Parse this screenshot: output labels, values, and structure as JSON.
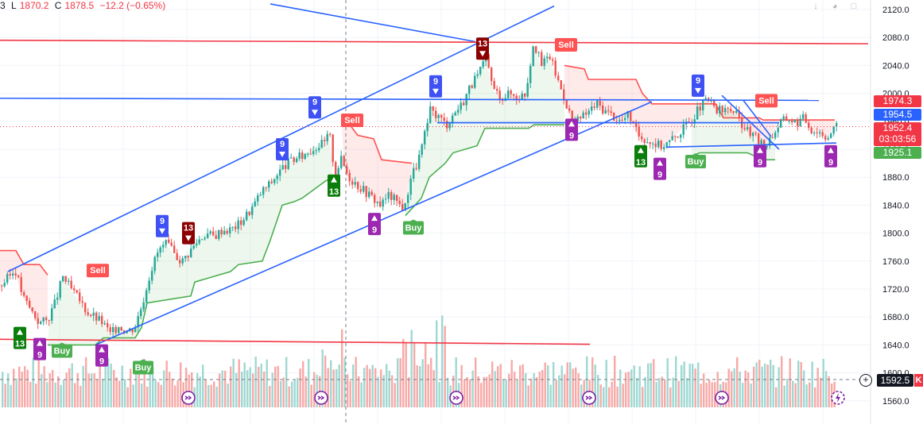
{
  "legend": {
    "open_tail": "3",
    "low_label": "L",
    "low": "1870.2",
    "close_label": "C",
    "close": "1878.5",
    "change": "−12.2 (−0.65%)"
  },
  "toolbar": {
    "down_icon": "arrow-down-icon",
    "eye_icon": "eye-icon",
    "more_icon": "more-icon"
  },
  "colors": {
    "up": "#26a69a",
    "down": "#ef5350",
    "trend_blue": "#2962ff",
    "resistance_red": "#f23645",
    "buy_green": "#4caf50",
    "sell_red": "#ff5252",
    "td_purple": "#9c27b0",
    "td_blue": "#3f51f5",
    "td_green": "#0a7d0a",
    "td_darkred": "#8b0000"
  },
  "price_labels": [
    {
      "key": "upper",
      "text": "1974.3",
      "color": "#f23645"
    },
    {
      "key": "mid",
      "text": "1954.5",
      "color": "#2962ff"
    },
    {
      "key": "last",
      "text": "1952.4",
      "color": "#f23645",
      "sub": "03:03:56"
    },
    {
      "key": "lower",
      "text": "1925.1",
      "color": "#4caf50"
    },
    {
      "key": "volume",
      "text": "1592.5",
      "color": "#131722"
    }
  ],
  "alert_badge": "K",
  "chart_data": {
    "type": "candlestick",
    "y_ticks": [
      "2120.0",
      "2080.0",
      "2040.0",
      "2000.0",
      "1960.0",
      "1920.0",
      "1880.0",
      "1840.0",
      "1800.0",
      "1760.0",
      "1720.0",
      "1680.0",
      "1640.0",
      "1600.0",
      "1560.0"
    ],
    "ylim": [
      1555,
      2125
    ],
    "price_path": [
      [
        0,
        1725
      ],
      [
        8,
        1735
      ],
      [
        18,
        1748
      ],
      [
        28,
        1708
      ],
      [
        38,
        1690
      ],
      [
        48,
        1672
      ],
      [
        58,
        1675
      ],
      [
        68,
        1700
      ],
      [
        78,
        1738
      ],
      [
        88,
        1720
      ],
      [
        98,
        1705
      ],
      [
        108,
        1688
      ],
      [
        118,
        1680
      ],
      [
        128,
        1672
      ],
      [
        138,
        1655
      ],
      [
        148,
        1668
      ],
      [
        158,
        1660
      ],
      [
        168,
        1665
      ],
      [
        178,
        1700
      ],
      [
        188,
        1745
      ],
      [
        198,
        1775
      ],
      [
        208,
        1785
      ],
      [
        218,
        1770
      ],
      [
        228,
        1760
      ],
      [
        238,
        1775
      ],
      [
        248,
        1790
      ],
      [
        258,
        1800
      ],
      [
        268,
        1795
      ],
      [
        278,
        1805
      ],
      [
        288,
        1805
      ],
      [
        298,
        1812
      ],
      [
        308,
        1825
      ],
      [
        318,
        1840
      ],
      [
        328,
        1860
      ],
      [
        338,
        1870
      ],
      [
        348,
        1885
      ],
      [
        358,
        1898
      ],
      [
        368,
        1905
      ],
      [
        378,
        1910
      ],
      [
        388,
        1918
      ],
      [
        398,
        1925
      ],
      [
        408,
        1930
      ],
      [
        413,
        1945
      ],
      [
        420,
        1885
      ],
      [
        428,
        1905
      ],
      [
        438,
        1880
      ],
      [
        448,
        1870
      ],
      [
        458,
        1860
      ],
      [
        468,
        1850
      ],
      [
        478,
        1840
      ],
      [
        488,
        1855
      ],
      [
        498,
        1845
      ],
      [
        508,
        1835
      ],
      [
        515,
        1880
      ],
      [
        522,
        1895
      ],
      [
        530,
        1925
      ],
      [
        540,
        1975
      ],
      [
        550,
        1968
      ],
      [
        560,
        1955
      ],
      [
        570,
        1972
      ],
      [
        580,
        1985
      ],
      [
        590,
        2010
      ],
      [
        600,
        2025
      ],
      [
        610,
        2050
      ],
      [
        620,
        2005
      ],
      [
        630,
        1995
      ],
      [
        640,
        2000
      ],
      [
        650,
        1995
      ],
      [
        660,
        2000
      ],
      [
        670,
        2075
      ],
      [
        680,
        2040
      ],
      [
        690,
        2055
      ],
      [
        700,
        2020
      ],
      [
        710,
        1990
      ],
      [
        720,
        1955
      ],
      [
        730,
        1965
      ],
      [
        740,
        1975
      ],
      [
        750,
        1985
      ],
      [
        760,
        1975
      ],
      [
        770,
        1968
      ],
      [
        780,
        1960
      ],
      [
        790,
        1970
      ],
      [
        800,
        1942
      ],
      [
        810,
        1935
      ],
      [
        820,
        1930
      ],
      [
        830,
        1925
      ],
      [
        840,
        1930
      ],
      [
        850,
        1940
      ],
      [
        860,
        1952
      ],
      [
        870,
        1965
      ],
      [
        880,
        1982
      ],
      [
        890,
        1990
      ],
      [
        900,
        1975
      ],
      [
        910,
        1975
      ],
      [
        920,
        1978
      ],
      [
        930,
        1960
      ],
      [
        940,
        1945
      ],
      [
        950,
        1935
      ],
      [
        960,
        1925
      ],
      [
        970,
        1940
      ],
      [
        980,
        1958
      ],
      [
        990,
        1965
      ],
      [
        1000,
        1958
      ],
      [
        1010,
        1965
      ],
      [
        1020,
        1948
      ],
      [
        1030,
        1945
      ],
      [
        1040,
        1938
      ],
      [
        1050,
        1952
      ]
    ],
    "supertrend": [
      {
        "dir": "down",
        "points": [
          [
            0,
            1775
          ],
          [
            20,
            1775
          ],
          [
            30,
            1755
          ],
          [
            50,
            1755
          ],
          [
            60,
            1740
          ]
        ]
      },
      {
        "dir": "up",
        "points": [
          [
            60,
            1640
          ],
          [
            120,
            1640
          ],
          [
            130,
            1650
          ],
          [
            170,
            1650
          ],
          [
            178,
            1665
          ],
          [
            185,
            1700
          ],
          [
            240,
            1710
          ],
          [
            245,
            1730
          ],
          [
            290,
            1745
          ],
          [
            300,
            1755
          ],
          [
            330,
            1760
          ],
          [
            340,
            1790
          ],
          [
            355,
            1840
          ],
          [
            370,
            1845
          ],
          [
            380,
            1850
          ],
          [
            410,
            1875
          ],
          [
            418,
            1878
          ]
        ]
      },
      {
        "dir": "down",
        "points": [
          [
            430,
            1955
          ],
          [
            440,
            1955
          ],
          [
            450,
            1940
          ],
          [
            470,
            1935
          ],
          [
            480,
            1905
          ],
          [
            518,
            1900
          ]
        ]
      },
      {
        "dir": "up",
        "points": [
          [
            510,
            1825
          ],
          [
            530,
            1850
          ],
          [
            540,
            1880
          ],
          [
            560,
            1900
          ],
          [
            570,
            1915
          ],
          [
            600,
            1925
          ],
          [
            610,
            1950
          ],
          [
            665,
            1950
          ],
          [
            672,
            1955
          ],
          [
            710,
            1955
          ]
        ]
      },
      {
        "dir": "down",
        "points": [
          [
            710,
            2040
          ],
          [
            735,
            2035
          ],
          [
            740,
            2020
          ],
          [
            800,
            2020
          ],
          [
            808,
            2000
          ],
          [
            820,
            1985
          ],
          [
            900,
            1985
          ],
          [
            910,
            1965
          ],
          [
            955,
            1965
          ],
          [
            960,
            1962
          ],
          [
            1050,
            1962
          ]
        ]
      },
      {
        "dir": "up",
        "points": [
          [
            870,
            1910
          ],
          [
            880,
            1915
          ],
          [
            940,
            1915
          ],
          [
            960,
            1905
          ],
          [
            975,
            1905
          ]
        ]
      }
    ],
    "trendlines": [
      {
        "color": "blue",
        "from": [
          10,
          1745
        ],
        "to": [
          697,
          2125
        ]
      },
      {
        "color": "blue",
        "from": [
          120,
          1640
        ],
        "to": [
          820,
          1988
        ]
      },
      {
        "color": "blue",
        "from": [
          340,
          2128
        ],
        "to": [
          598,
          2074
        ]
      },
      {
        "color": "blue",
        "from": [
          0,
          1993
        ],
        "to": [
          1030,
          1990
        ]
      },
      {
        "color": "blue",
        "from": [
          550,
          1958
        ],
        "to": [
          980,
          1958
        ]
      },
      {
        "color": "blue",
        "from": [
          838,
          1923
        ],
        "to": [
          1052,
          1929
        ]
      },
      {
        "color": "blue",
        "from": [
          908,
          1997
        ],
        "to": [
          980,
          1920
        ]
      },
      {
        "color": "blue",
        "from": [
          935,
          1990
        ],
        "to": [
          970,
          1938
        ]
      },
      {
        "color": "red",
        "from": [
          0,
          2076
        ],
        "to": [
          1092,
          2071
        ]
      },
      {
        "color": "red",
        "from": [
          0,
          1648
        ],
        "to": [
          742,
          1641
        ]
      }
    ],
    "markers": [
      {
        "label": "13",
        "kind": "td_up_green",
        "x": 25,
        "price": 1650
      },
      {
        "label": "9",
        "kind": "td_up_purple",
        "x": 50,
        "price": 1634
      },
      {
        "label": "Buy",
        "kind": "buy",
        "x": 78,
        "price": 1632
      },
      {
        "label": "9",
        "kind": "td_up_purple",
        "x": 128,
        "price": 1625
      },
      {
        "label": "Sell",
        "kind": "sell",
        "x": 123,
        "price": 1747
      },
      {
        "label": "Buy",
        "kind": "buy",
        "x": 180,
        "price": 1608
      },
      {
        "label": "9",
        "kind": "td_down_blue",
        "x": 204,
        "price": 1810
      },
      {
        "label": "13",
        "kind": "td_down_darkred",
        "x": 237,
        "price": 1800
      },
      {
        "label": "9",
        "kind": "td_down_blue",
        "x": 355,
        "price": 1920
      },
      {
        "label": "9",
        "kind": "td_down_blue",
        "x": 396,
        "price": 1980
      },
      {
        "label": "Sell",
        "kind": "sell",
        "x": 443,
        "price": 1962
      },
      {
        "label": "13",
        "kind": "td_up_green",
        "x": 420,
        "price": 1868
      },
      {
        "label": "9",
        "kind": "td_up_purple",
        "x": 471,
        "price": 1813
      },
      {
        "label": "Buy",
        "kind": "buy",
        "x": 520,
        "price": 1808
      },
      {
        "label": "9",
        "kind": "td_down_blue",
        "x": 548,
        "price": 2010
      },
      {
        "label": "13",
        "kind": "td_down_darkred",
        "x": 607,
        "price": 2064
      },
      {
        "label": "Sell",
        "kind": "sell",
        "x": 712,
        "price": 2070
      },
      {
        "label": "9",
        "kind": "td_up_purple",
        "x": 719,
        "price": 1948
      },
      {
        "label": "13",
        "kind": "td_up_green",
        "x": 806,
        "price": 1910
      },
      {
        "label": "9",
        "kind": "td_up_purple",
        "x": 830,
        "price": 1892
      },
      {
        "label": "Buy",
        "kind": "buy",
        "x": 875,
        "price": 1903
      },
      {
        "label": "9",
        "kind": "td_down_blue",
        "x": 878,
        "price": 2011
      },
      {
        "label": "Sell",
        "kind": "sell",
        "x": 964,
        "price": 1990
      },
      {
        "label": "9",
        "kind": "td_up_purple",
        "x": 956,
        "price": 1910
      },
      {
        "label": "9",
        "kind": "td_up_purple",
        "x": 1045,
        "price": 1910
      }
    ],
    "event_icons": [
      237,
      404,
      574,
      741,
      908
    ],
    "event_icon_extra": 1054
  }
}
